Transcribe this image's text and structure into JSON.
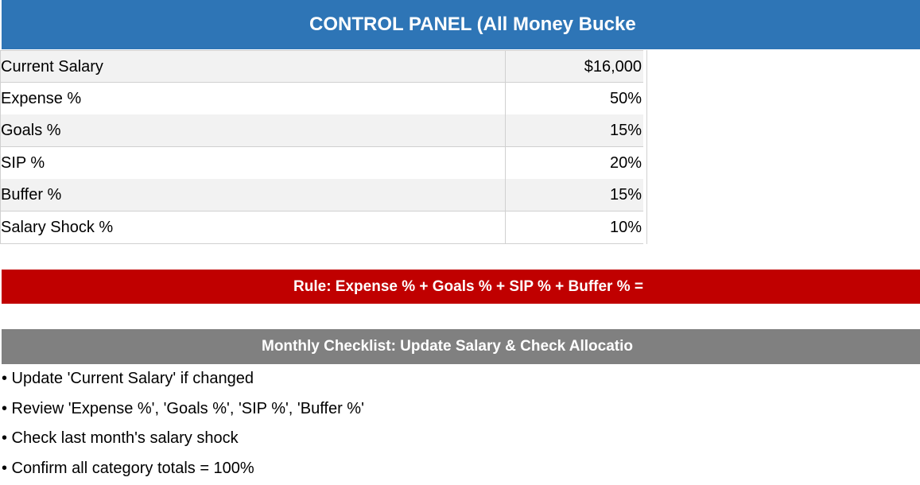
{
  "header": {
    "title": "CONTROL PANEL (All Money Bucke"
  },
  "table": {
    "rows": [
      [
        "Current Salary",
        "$16,000"
      ],
      [
        "Expense %",
        "50%"
      ],
      [
        "Goals %",
        "15%"
      ],
      [
        "SIP %",
        "20%"
      ],
      [
        "Buffer %",
        "15%"
      ],
      [
        "Salary Shock %",
        "10%"
      ]
    ]
  },
  "rule": "Rule: Expense % + Goals % + SIP % + Buffer % =",
  "checklist": {
    "title": "Monthly Checklist: Update Salary & Check Allocatio",
    "items": [
      "• Update 'Current Salary' if changed",
      "• Review 'Expense %', 'Goals %', 'SIP %', 'Buffer %'",
      "• Check last month's salary shock",
      "• Confirm all category totals = 100%"
    ]
  }
}
